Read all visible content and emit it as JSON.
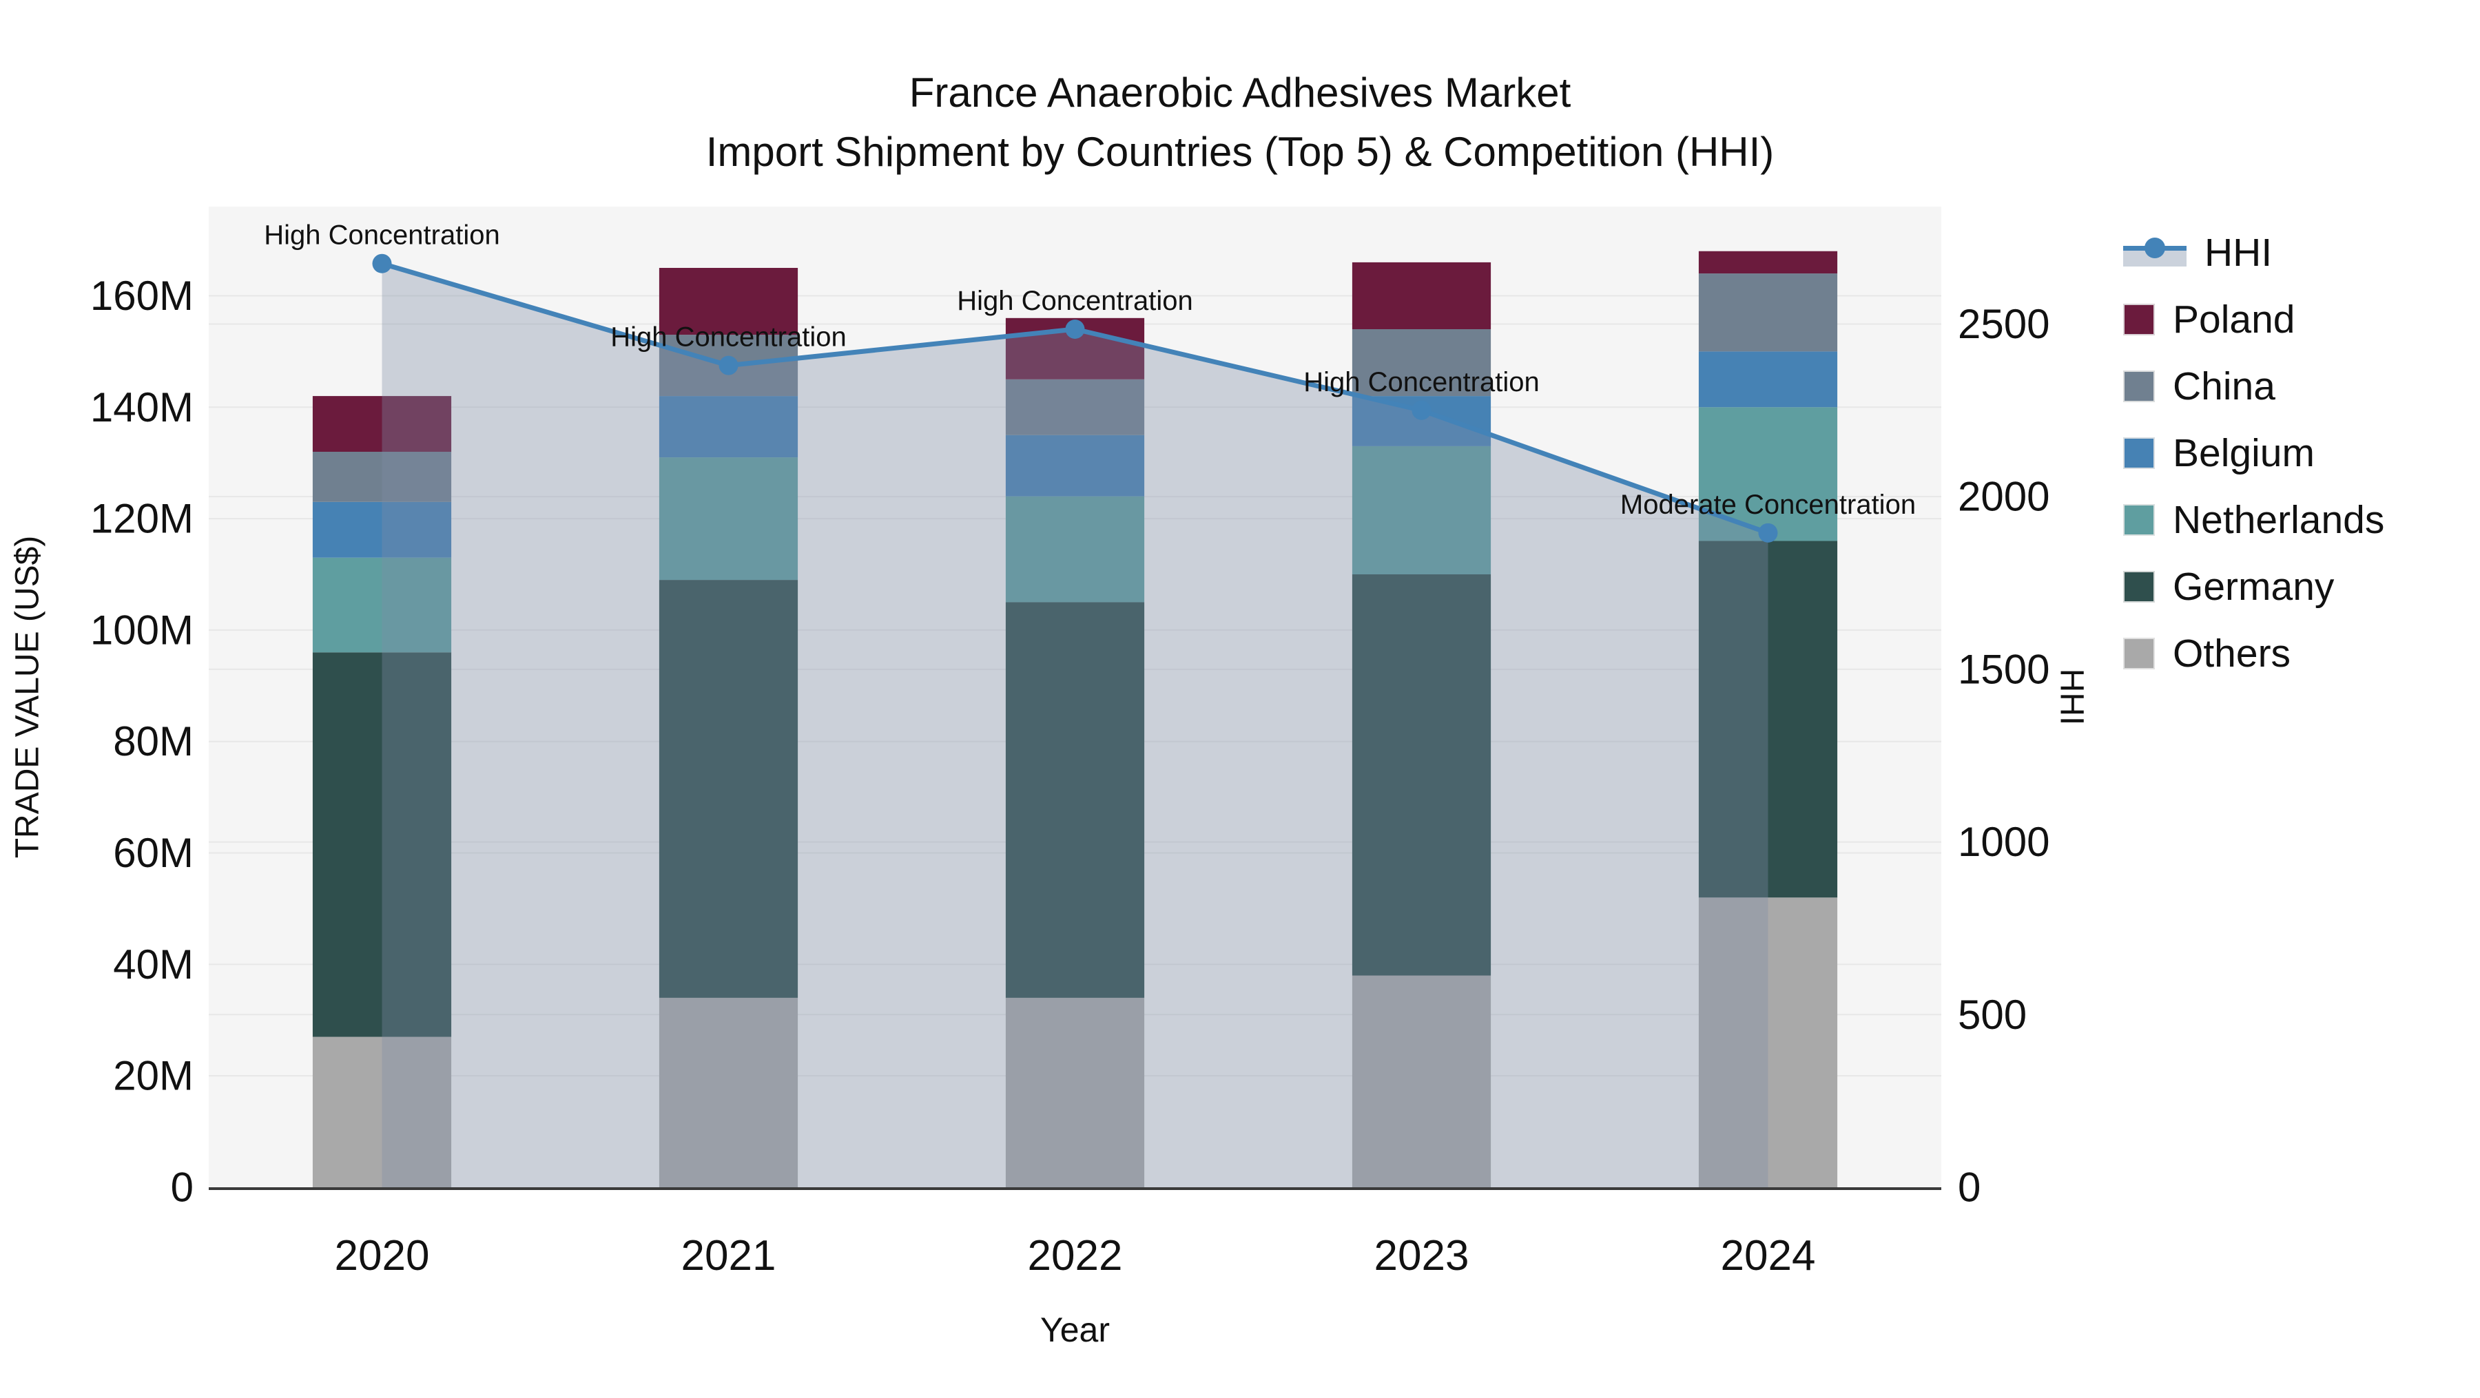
{
  "title": {
    "line1": "France Anaerobic Adhesives Market",
    "line2": "Import Shipment by Countries (Top 5) & Competition (HHI)"
  },
  "chart_data": {
    "type": "bar",
    "subtype": "stacked-bars-with-line-overlay",
    "x": {
      "label": "Year",
      "categories": [
        "2020",
        "2021",
        "2022",
        "2023",
        "2024"
      ]
    },
    "y_left": {
      "label": "TRADE VALUE (US$)",
      "unit": "million US$",
      "tick_labels": [
        "0",
        "20M",
        "40M",
        "60M",
        "80M",
        "100M",
        "120M",
        "140M",
        "160M"
      ],
      "tick_values": [
        0,
        20,
        40,
        60,
        80,
        100,
        120,
        140,
        160
      ],
      "min": 0,
      "max": 176
    },
    "y_right": {
      "label": "HHI",
      "tick_labels": [
        "0",
        "500",
        "1000",
        "1500",
        "2000",
        "2500"
      ],
      "tick_values": [
        0,
        500,
        1000,
        1500,
        2000,
        2500
      ],
      "min": 0,
      "max": 2840
    },
    "bar_series": [
      {
        "name": "Others",
        "color": "#A9A9A9",
        "values": [
          27,
          34,
          34,
          38,
          52
        ]
      },
      {
        "name": "Germany",
        "color": "#2F4F4D",
        "values": [
          69,
          75,
          71,
          72,
          64
        ]
      },
      {
        "name": "Netherlands",
        "color": "#5F9EA0",
        "values": [
          17,
          22,
          19,
          23,
          24
        ]
      },
      {
        "name": "Belgium",
        "color": "#4682B4",
        "values": [
          10,
          11,
          11,
          9,
          10
        ]
      },
      {
        "name": "China",
        "color": "#708090",
        "values": [
          9,
          11,
          10,
          12,
          14
        ]
      },
      {
        "name": "Poland",
        "color": "#6B1B3D",
        "values": [
          10,
          12,
          11,
          12,
          4
        ]
      }
    ],
    "line_series": {
      "name": "HHI",
      "color": "#4383B8",
      "area_fill": "rgba(125,140,165,0.35)",
      "values": [
        2675,
        2380,
        2485,
        2250,
        1895
      ]
    },
    "annotations": [
      {
        "x": "2020",
        "text": "High Concentration"
      },
      {
        "x": "2021",
        "text": "High Concentration"
      },
      {
        "x": "2022",
        "text": "High Concentration"
      },
      {
        "x": "2023",
        "text": "High Concentration"
      },
      {
        "x": "2024",
        "text": "Moderate Concentration"
      }
    ],
    "legend": [
      {
        "name": "HHI",
        "type": "line-marker",
        "color": "#4383B8"
      },
      {
        "name": "Poland",
        "type": "swatch",
        "color": "#6B1B3D"
      },
      {
        "name": "China",
        "type": "swatch",
        "color": "#708090"
      },
      {
        "name": "Belgium",
        "type": "swatch",
        "color": "#4682B4"
      },
      {
        "name": "Netherlands",
        "type": "swatch",
        "color": "#5F9EA0"
      },
      {
        "name": "Germany",
        "type": "swatch",
        "color": "#2F4F4D"
      },
      {
        "name": "Others",
        "type": "swatch",
        "color": "#A9A9A9"
      }
    ],
    "style": {
      "plot_bg": "#F5F5F5",
      "grid_color": "#E7E7E7",
      "axis_line_color": "#3A3A3A",
      "text_color": "#111111"
    }
  }
}
